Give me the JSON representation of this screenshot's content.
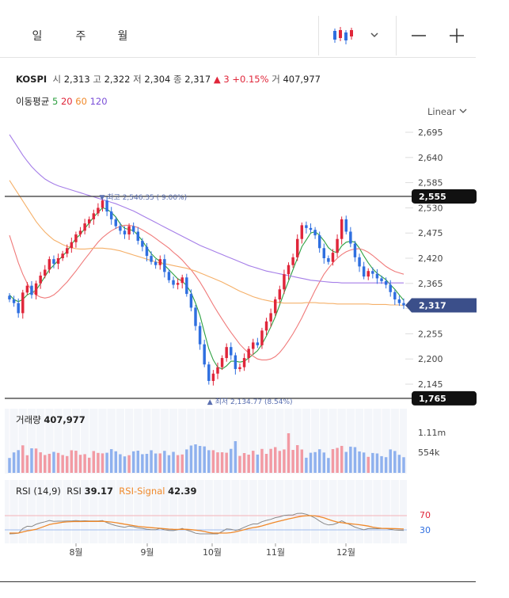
{
  "tabs": [
    {
      "label": "일",
      "active": true
    },
    {
      "label": "주",
      "active": false
    },
    {
      "label": "월",
      "active": false
    }
  ],
  "toolbar": {
    "chart_type_icon": "candlestick-icon",
    "dropdown_icon": "chevron-down-icon",
    "minus_icon": "zoom-out-icon",
    "plus_icon": "zoom-in-icon"
  },
  "quote": {
    "symbol": "KOSPI",
    "open_label": "시",
    "open": "2,313",
    "high_label": "고",
    "high": "2,322",
    "low_label": "저",
    "low": "2,304",
    "close_label": "종",
    "close": "2,317",
    "change_arrow": "▲",
    "change": "3",
    "change_pct": "+0.15%",
    "volume_label": "거",
    "volume": "407,977"
  },
  "moving_average": {
    "label": "이동평균",
    "periods": [
      {
        "value": "5",
        "color": "#2ea042"
      },
      {
        "value": "20",
        "color": "#e0263a"
      },
      {
        "value": "60",
        "color": "#f0892a"
      },
      {
        "value": "120",
        "color": "#7b4fd8"
      }
    ]
  },
  "scale_mode": "Linear",
  "price_axis": {
    "ticks": [
      2695,
      2640,
      2585,
      2530,
      2475,
      2420,
      2365,
      2310,
      2255,
      2200,
      2145
    ],
    "tick_labels": [
      "2,695",
      "2,640",
      "2,585",
      "2,530",
      "2,475",
      "2,420",
      "2,365",
      "2,310",
      "2,255",
      "2,200",
      "2,145"
    ],
    "line_marker_upper": "2,555",
    "line_marker_lower": "1,765",
    "current_price_label": "2,317"
  },
  "annotations": {
    "high": "최고 2,546.35 ( 9.00%)",
    "low": "최저 2,134.77 (8.54%)",
    "high_arrow": "▼",
    "low_arrow": "▲"
  },
  "volume": {
    "label": "거래량",
    "value": "407,977",
    "axis_labels": [
      "1.11m",
      "554k"
    ]
  },
  "rsi": {
    "label": "RSI (14,9)",
    "rsi_label": "RSI",
    "rsi_value": "39.17",
    "signal_label": "RSI-Signal",
    "signal_value": "42.39",
    "levels": [
      "70",
      "30"
    ]
  },
  "x_axis": {
    "labels": [
      "8월",
      "9월",
      "10월",
      "11월",
      "12월"
    ]
  },
  "colors": {
    "up": "#e0263a",
    "down": "#2f6fe0",
    "ma5": "#2ea042",
    "ma20": "#f07a7a",
    "ma60": "#f5b069",
    "ma120": "#a57ee8",
    "accent": "#3b4f8a"
  },
  "chart_data": {
    "type": "candlestick",
    "title": "KOSPI",
    "ylim": [
      2134.77,
      2695
    ],
    "x_labels": [
      "8월",
      "9월",
      "10월",
      "11월",
      "12월"
    ],
    "series": [
      {
        "name": "KOSPI",
        "ohlc_close_path": [
          2330,
          2322,
          2300,
          2345,
          2360,
          2340,
          2365,
          2382,
          2395,
          2418,
          2408,
          2420,
          2430,
          2442,
          2455,
          2472,
          2480,
          2496,
          2505,
          2518,
          2530,
          2546,
          2522,
          2505,
          2490,
          2480,
          2472,
          2490,
          2478,
          2458,
          2445,
          2425,
          2412,
          2405,
          2418,
          2390,
          2372,
          2362,
          2366,
          2378,
          2342,
          2312,
          2272,
          2232,
          2188,
          2152,
          2168,
          2182,
          2202,
          2226,
          2208,
          2178,
          2182,
          2202,
          2222,
          2236,
          2230,
          2262,
          2282,
          2300,
          2330,
          2352,
          2385,
          2405,
          2422,
          2462,
          2492,
          2486,
          2482,
          2470,
          2442,
          2420,
          2412,
          2432,
          2462,
          2505,
          2478,
          2452,
          2422,
          2402,
          2380,
          2392,
          2386,
          2376,
          2370,
          2362,
          2346,
          2330,
          2322,
          2317
        ]
      },
      {
        "name": "5",
        "values": [
          2340,
          2330,
          2325,
          2330,
          2340,
          2345,
          2350,
          2365,
          2380,
          2395,
          2405,
          2415,
          2425,
          2435,
          2450,
          2463,
          2472,
          2485,
          2497,
          2510,
          2520,
          2530,
          2527,
          2520,
          2510,
          2495,
          2485,
          2483,
          2480,
          2470,
          2458,
          2443,
          2430,
          2420,
          2413,
          2405,
          2395,
          2385,
          2375,
          2370,
          2360,
          2345,
          2322,
          2295,
          2258,
          2222,
          2198,
          2182,
          2178,
          2185,
          2195,
          2195,
          2193,
          2195,
          2202,
          2210,
          2218,
          2232,
          2250,
          2270,
          2292,
          2318,
          2345,
          2370,
          2395,
          2420,
          2445,
          2460,
          2475,
          2478,
          2470,
          2458,
          2443,
          2435,
          2432,
          2447,
          2455,
          2457,
          2455,
          2442,
          2425,
          2410,
          2397,
          2387,
          2380,
          2373,
          2362,
          2352,
          2340,
          2328
        ]
      },
      {
        "name": "20",
        "values": [
          2470,
          2440,
          2410,
          2385,
          2365,
          2350,
          2340,
          2335,
          2333,
          2335,
          2340,
          2348,
          2358,
          2368,
          2380,
          2392,
          2405,
          2418,
          2430,
          2443,
          2455,
          2465,
          2473,
          2480,
          2485,
          2490,
          2492,
          2492,
          2490,
          2487,
          2482,
          2476,
          2470,
          2463,
          2456,
          2449,
          2442,
          2433,
          2425,
          2416,
          2405,
          2395,
          2382,
          2368,
          2352,
          2335,
          2318,
          2302,
          2287,
          2272,
          2258,
          2245,
          2232,
          2222,
          2213,
          2206,
          2200,
          2198,
          2198,
          2200,
          2205,
          2214,
          2226,
          2240,
          2255,
          2272,
          2290,
          2310,
          2330,
          2350,
          2368,
          2385,
          2398,
          2410,
          2420,
          2428,
          2434,
          2438,
          2440,
          2441,
          2438,
          2433,
          2426,
          2418,
          2410,
          2402,
          2396,
          2391,
          2388,
          2385
        ]
      },
      {
        "name": "60",
        "values": [
          2590,
          2575,
          2560,
          2545,
          2530,
          2515,
          2500,
          2488,
          2477,
          2468,
          2460,
          2455,
          2450,
          2446,
          2443,
          2441,
          2440,
          2440,
          2441,
          2442,
          2442,
          2442,
          2441,
          2440,
          2438,
          2436,
          2433,
          2430,
          2427,
          2424,
          2421,
          2418,
          2415,
          2412,
          2410,
          2408,
          2406,
          2404,
          2402,
          2400,
          2398,
          2395,
          2392,
          2388,
          2384,
          2380,
          2376,
          2372,
          2368,
          2363,
          2358,
          2353,
          2348,
          2344,
          2340,
          2336,
          2333,
          2330,
          2328,
          2326,
          2324,
          2323,
          2322,
          2322,
          2322,
          2322,
          2322,
          2323,
          2323,
          2323,
          2322,
          2322,
          2321,
          2321,
          2320,
          2320,
          2320,
          2320,
          2320,
          2320,
          2320,
          2320,
          2319,
          2319,
          2319,
          2319,
          2318,
          2318,
          2318,
          2317
        ]
      },
      {
        "name": "120",
        "values": [
          2690,
          2675,
          2660,
          2645,
          2632,
          2620,
          2610,
          2601,
          2593,
          2587,
          2582,
          2578,
          2575,
          2572,
          2569,
          2566,
          2563,
          2560,
          2557,
          2554,
          2551,
          2548,
          2545,
          2542,
          2539,
          2535,
          2531,
          2527,
          2523,
          2518,
          2513,
          2508,
          2503,
          2498,
          2493,
          2488,
          2483,
          2478,
          2473,
          2468,
          2463,
          2458,
          2453,
          2448,
          2444,
          2440,
          2436,
          2432,
          2428,
          2424,
          2420,
          2416,
          2412,
          2408,
          2404,
          2401,
          2398,
          2395,
          2392,
          2390,
          2388,
          2386,
          2384,
          2382,
          2380,
          2378,
          2376,
          2374,
          2372,
          2371,
          2370,
          2369,
          2368,
          2367,
          2367,
          2366,
          2366,
          2366,
          2366,
          2366,
          2366,
          2366,
          2366,
          2366,
          2366,
          2366,
          2366,
          2366,
          2366,
          2366
        ]
      }
    ]
  }
}
